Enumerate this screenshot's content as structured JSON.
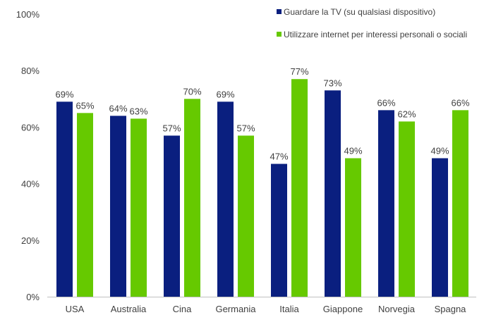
{
  "chart_data": {
    "type": "bar",
    "title": "",
    "xlabel": "",
    "ylabel": "",
    "ylim": [
      0,
      100
    ],
    "yticks": [
      "0%",
      "20%",
      "40%",
      "60%",
      "80%",
      "100%"
    ],
    "ytick_values": [
      0,
      20,
      40,
      60,
      80,
      100
    ],
    "grid": false,
    "legend_position": "top-right",
    "categories": [
      "USA",
      "Australia",
      "Cina",
      "Germania",
      "Italia",
      "Giappone",
      "Norvegia",
      "Spagna"
    ],
    "series": [
      {
        "name": "Guardare la TV (su qualsiasi dispositivo)",
        "color": "#0a1f7f",
        "values": [
          69,
          64,
          57,
          69,
          47,
          73,
          66,
          49
        ]
      },
      {
        "name": "Utilizzare internet per interessi personali o sociali",
        "color": "#66c900",
        "values": [
          65,
          63,
          70,
          57,
          77,
          49,
          62,
          66
        ]
      }
    ],
    "value_suffix": "%"
  }
}
